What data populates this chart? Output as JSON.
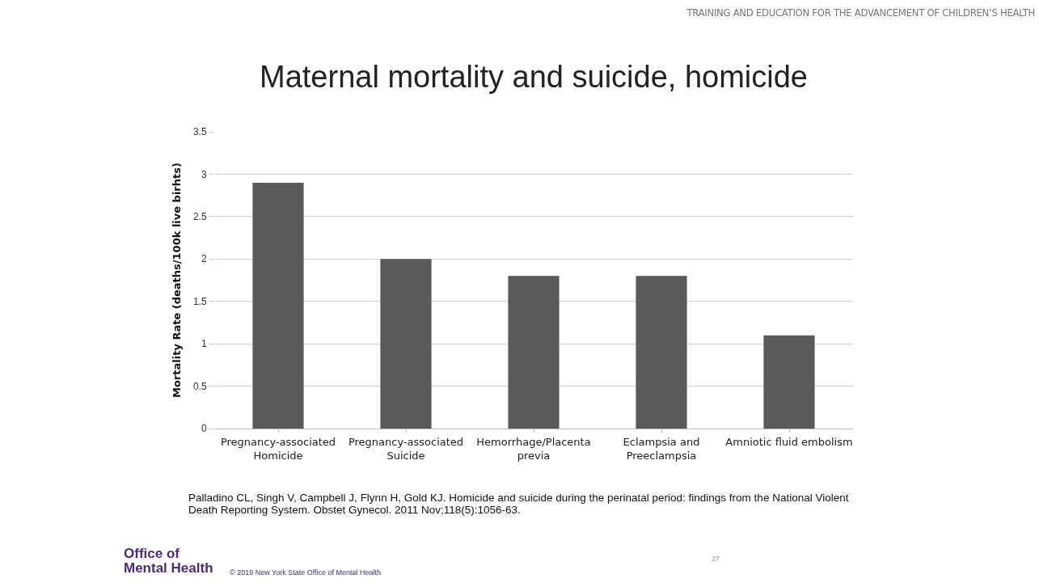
{
  "chart_data": {
    "type": "bar",
    "title": "Maternal mortality and suicide, homicide",
    "ylabel": "Mortality Rate (deaths/100k live birhts)",
    "categories": [
      "Pregnancy-associated Homicide",
      "Pregnancy-associated Suicide",
      "Hemorrhage/Placenta previa",
      "Eclampsia and Preeclampsia",
      "Amniotic fluid embolism"
    ],
    "values": [
      2.9,
      2.0,
      1.8,
      1.8,
      1.1
    ],
    "color": "#5a5a5a",
    "ylim": [
      0,
      3.5
    ],
    "yticks": [
      0,
      0.5,
      1,
      1.5,
      2,
      2.5,
      3,
      3.5
    ],
    "grid": "y",
    "annotations": [
      "TRAINING AND EDUCATION FOR THE ADVANCEMENT OF CHILDREN’S HEALTH",
      "Palladino CL, Singh V, Campbell J, Flynn H, Gold KJ. Homicide and suicide during the perinatal period: findings from the National Violent Death Reporting System. Obstet Gynecol. 2011 Nov;118(5):1056-63.",
      "Office of Mental Health",
      "© 2019 New York State Office of Mental Health",
      "27"
    ]
  }
}
